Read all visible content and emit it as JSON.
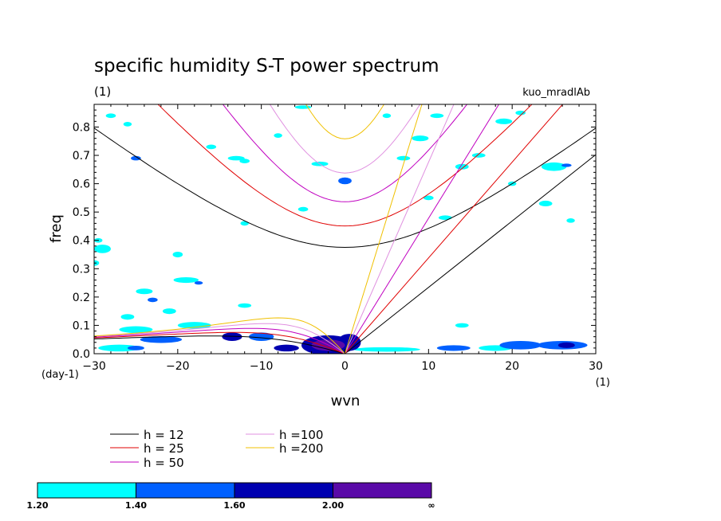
{
  "chart_data": {
    "type": "contour",
    "title": "specific humidity S-T power spectrum",
    "subtitle_left": "(1)",
    "subtitle_right": "kuo_mradlAb",
    "xlabel": "wvn",
    "ylabel": "freq",
    "x_unit": "(1)",
    "y_unit": "(day-1)",
    "xlim": [
      -30,
      30
    ],
    "ylim": [
      0,
      0.88
    ],
    "xticks": [
      -30,
      -20,
      -10,
      0,
      10,
      20,
      30
    ],
    "yticks": [
      0.0,
      0.1,
      0.2,
      0.3,
      0.4,
      0.5,
      0.6,
      0.7,
      0.8
    ],
    "dispersion_curves": [
      {
        "label": "h = 12",
        "h": 12,
        "color": "#000000"
      },
      {
        "label": "h = 25",
        "h": 25,
        "color": "#e00000"
      },
      {
        "label": "h = 50",
        "h": 50,
        "color": "#c000c0"
      },
      {
        "label": "h =100",
        "h": 100,
        "color": "#e090e0"
      },
      {
        "label": "h =200",
        "h": 200,
        "color": "#f0c000"
      }
    ],
    "colorbar": {
      "labels": [
        "1.20",
        "1.40",
        "1.60",
        "2.00",
        "∞"
      ],
      "colors": [
        "#00ffff",
        "#0060ff",
        "#0000b0",
        "#5a0aa8"
      ]
    },
    "shaded_regions": [
      {
        "x": -2,
        "y": 0.03,
        "rx": 3.2,
        "ry": 0.035,
        "level": 3
      },
      {
        "x": -2,
        "y": 0.03,
        "rx": 2.0,
        "ry": 0.02,
        "level": 4
      },
      {
        "x": 0.5,
        "y": 0.04,
        "rx": 1.4,
        "ry": 0.03,
        "level": 3
      },
      {
        "x": -13.5,
        "y": 0.06,
        "rx": 1.2,
        "ry": 0.015,
        "level": 3
      },
      {
        "x": -10,
        "y": 0.06,
        "rx": 1.5,
        "ry": 0.015,
        "level": 2
      },
      {
        "x": -22,
        "y": 0.05,
        "rx": 2.5,
        "ry": 0.012,
        "level": 2
      },
      {
        "x": -25,
        "y": 0.085,
        "rx": 2.0,
        "ry": 0.012,
        "level": 1
      },
      {
        "x": -18,
        "y": 0.1,
        "rx": 2.0,
        "ry": 0.012,
        "level": 1
      },
      {
        "x": -27,
        "y": 0.02,
        "rx": 2.5,
        "ry": 0.012,
        "level": 1
      },
      {
        "x": -25,
        "y": 0.02,
        "rx": 1.0,
        "ry": 0.008,
        "level": 2
      },
      {
        "x": 5,
        "y": 0.015,
        "rx": 4.0,
        "ry": 0.008,
        "level": 1
      },
      {
        "x": 13,
        "y": 0.02,
        "rx": 2.0,
        "ry": 0.01,
        "level": 2
      },
      {
        "x": 18,
        "y": 0.02,
        "rx": 2.0,
        "ry": 0.01,
        "level": 1
      },
      {
        "x": 21,
        "y": 0.03,
        "rx": 2.5,
        "ry": 0.015,
        "level": 2
      },
      {
        "x": 26,
        "y": 0.03,
        "rx": 3.0,
        "ry": 0.015,
        "level": 2
      },
      {
        "x": 26.5,
        "y": 0.03,
        "rx": 1.0,
        "ry": 0.01,
        "level": 3
      },
      {
        "x": -7,
        "y": 0.02,
        "rx": 1.5,
        "ry": 0.012,
        "level": 3
      },
      {
        "x": -19,
        "y": 0.26,
        "rx": 1.5,
        "ry": 0.01,
        "level": 1
      },
      {
        "x": -17.5,
        "y": 0.25,
        "rx": 0.5,
        "ry": 0.006,
        "level": 2
      },
      {
        "x": -24,
        "y": 0.22,
        "rx": 1.0,
        "ry": 0.01,
        "level": 1
      },
      {
        "x": -23,
        "y": 0.19,
        "rx": 0.6,
        "ry": 0.008,
        "level": 2
      },
      {
        "x": -26,
        "y": 0.13,
        "rx": 0.8,
        "ry": 0.01,
        "level": 1
      },
      {
        "x": -21,
        "y": 0.15,
        "rx": 0.8,
        "ry": 0.01,
        "level": 1
      },
      {
        "x": -12,
        "y": 0.17,
        "rx": 0.8,
        "ry": 0.008,
        "level": 1
      },
      {
        "x": -29,
        "y": 0.37,
        "rx": 1.0,
        "ry": 0.015,
        "level": 1
      },
      {
        "x": -30,
        "y": 0.32,
        "rx": 0.6,
        "ry": 0.01,
        "level": 1
      },
      {
        "x": -29.5,
        "y": 0.4,
        "rx": 0.5,
        "ry": 0.008,
        "level": 1
      },
      {
        "x": -20,
        "y": 0.35,
        "rx": 0.6,
        "ry": 0.01,
        "level": 1
      },
      {
        "x": -12,
        "y": 0.46,
        "rx": 0.5,
        "ry": 0.008,
        "level": 1
      },
      {
        "x": -25,
        "y": 0.69,
        "rx": 0.6,
        "ry": 0.008,
        "level": 2
      },
      {
        "x": -28,
        "y": 0.84,
        "rx": 0.6,
        "ry": 0.008,
        "level": 1
      },
      {
        "x": -26,
        "y": 0.81,
        "rx": 0.5,
        "ry": 0.008,
        "level": 1
      },
      {
        "x": -16,
        "y": 0.73,
        "rx": 0.6,
        "ry": 0.008,
        "level": 1
      },
      {
        "x": -12,
        "y": 0.68,
        "rx": 0.6,
        "ry": 0.008,
        "level": 1
      },
      {
        "x": -8,
        "y": 0.77,
        "rx": 0.5,
        "ry": 0.008,
        "level": 1
      },
      {
        "x": -3,
        "y": 0.67,
        "rx": 1.0,
        "ry": 0.008,
        "level": 1
      },
      {
        "x": 0,
        "y": 0.61,
        "rx": 0.8,
        "ry": 0.012,
        "level": 2
      },
      {
        "x": -13,
        "y": 0.69,
        "rx": 1.0,
        "ry": 0.008,
        "level": 1
      },
      {
        "x": -5,
        "y": 0.51,
        "rx": 0.6,
        "ry": 0.008,
        "level": 1
      },
      {
        "x": 7,
        "y": 0.69,
        "rx": 0.8,
        "ry": 0.008,
        "level": 1
      },
      {
        "x": 9,
        "y": 0.76,
        "rx": 1.0,
        "ry": 0.01,
        "level": 1
      },
      {
        "x": 11,
        "y": 0.84,
        "rx": 0.8,
        "ry": 0.008,
        "level": 1
      },
      {
        "x": 10,
        "y": 0.55,
        "rx": 0.6,
        "ry": 0.008,
        "level": 1
      },
      {
        "x": 12,
        "y": 0.48,
        "rx": 0.8,
        "ry": 0.008,
        "level": 1
      },
      {
        "x": 14,
        "y": 0.66,
        "rx": 0.8,
        "ry": 0.01,
        "level": 1
      },
      {
        "x": 16,
        "y": 0.7,
        "rx": 0.8,
        "ry": 0.008,
        "level": 1
      },
      {
        "x": 19,
        "y": 0.82,
        "rx": 1.0,
        "ry": 0.01,
        "level": 1
      },
      {
        "x": 21,
        "y": 0.85,
        "rx": 0.6,
        "ry": 0.008,
        "level": 1
      },
      {
        "x": 25,
        "y": 0.66,
        "rx": 1.5,
        "ry": 0.015,
        "level": 1
      },
      {
        "x": 26.5,
        "y": 0.665,
        "rx": 0.6,
        "ry": 0.006,
        "level": 2
      },
      {
        "x": 24,
        "y": 0.53,
        "rx": 0.8,
        "ry": 0.01,
        "level": 1
      },
      {
        "x": 27,
        "y": 0.47,
        "rx": 0.5,
        "ry": 0.008,
        "level": 1
      },
      {
        "x": 20,
        "y": 0.6,
        "rx": 0.5,
        "ry": 0.008,
        "level": 1
      },
      {
        "x": 14,
        "y": 0.1,
        "rx": 0.8,
        "ry": 0.008,
        "level": 1
      },
      {
        "x": 5,
        "y": 0.84,
        "rx": 0.5,
        "ry": 0.008,
        "level": 1
      },
      {
        "x": -5,
        "y": 0.87,
        "rx": 1.0,
        "ry": 0.006,
        "level": 1
      }
    ]
  }
}
